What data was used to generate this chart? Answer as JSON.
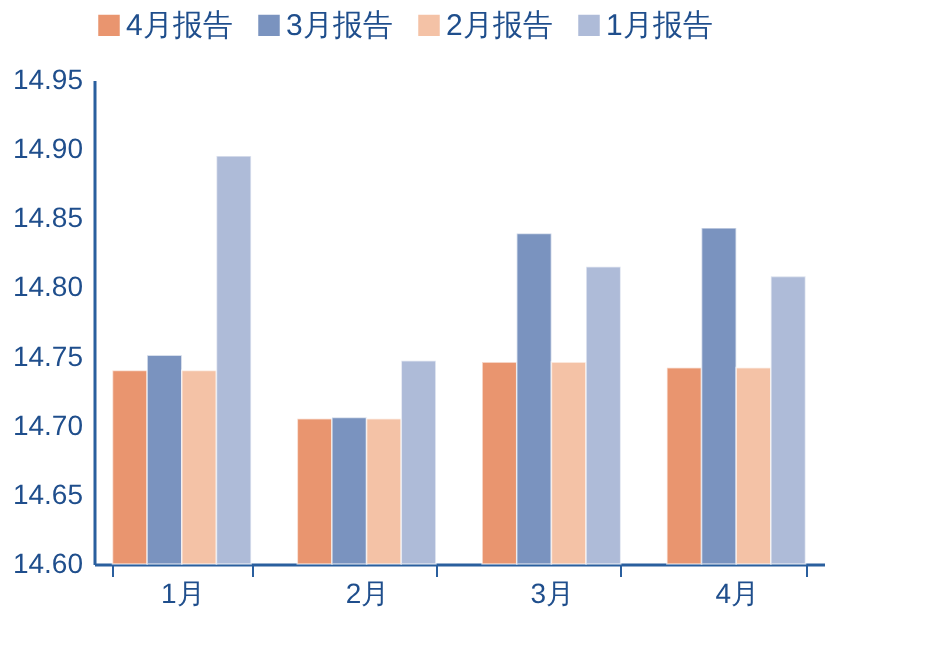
{
  "chart_data": {
    "type": "bar",
    "categories": [
      "1月",
      "2月",
      "3月",
      "4月"
    ],
    "series": [
      {
        "name": "4月报告",
        "color": "#e9956f",
        "values": [
          14.74,
          14.705,
          14.746,
          14.742
        ]
      },
      {
        "name": "3月报告",
        "color": "#7a93bf",
        "values": [
          14.751,
          14.706,
          14.839,
          14.843
        ]
      },
      {
        "name": "2月报告",
        "color": "#f4c2a6",
        "values": [
          14.74,
          14.705,
          14.746,
          14.742
        ]
      },
      {
        "name": "1月报告",
        "color": "#aebbd8",
        "values": [
          14.895,
          14.747,
          14.815,
          14.808
        ]
      }
    ],
    "ylim": [
      14.6,
      14.95
    ],
    "yticks": [
      {
        "value": 14.6,
        "label": "14.60"
      },
      {
        "value": 14.65,
        "label": "14.65"
      },
      {
        "value": 14.7,
        "label": "14.70"
      },
      {
        "value": 14.75,
        "label": "14.75"
      },
      {
        "value": 14.8,
        "label": "14.80"
      },
      {
        "value": 14.85,
        "label": "14.85"
      },
      {
        "value": 14.9,
        "label": "14.90"
      },
      {
        "value": 14.95,
        "label": "14.95"
      }
    ],
    "grid": false,
    "legend": "top"
  }
}
